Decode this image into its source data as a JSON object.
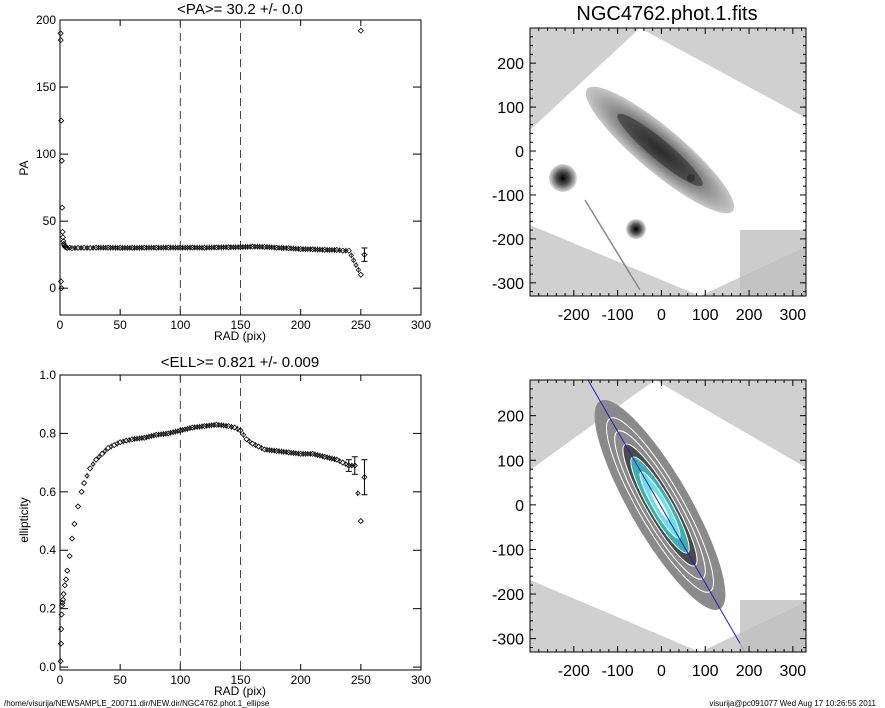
{
  "footer": {
    "path": "/home/visurija/NEWSAMPLE_200711.dir/NEW.dir/NGC4762.phot.1_ellipse",
    "stamp": "visurija@pc091077  Wed Aug 17 10:26:55 2011"
  },
  "chart_data": [
    {
      "type": "scatter",
      "title": "<PA>=  30.2 +/-   0.0",
      "xlabel": "RAD (pix)",
      "ylabel": "PA",
      "xlim": [
        0,
        300
      ],
      "ylim": [
        -20,
        200
      ],
      "xticks": [
        "0",
        "50",
        "100",
        "150",
        "200",
        "250",
        "300"
      ],
      "yticks": [
        "0",
        "50",
        "100",
        "150",
        "200"
      ],
      "vlines": [
        100,
        150
      ],
      "x": [
        0.5,
        0.8,
        1.0,
        1.2,
        1.5,
        1.8,
        2.1,
        2.4,
        2.8,
        3.2,
        3.6,
        4.0,
        5.0,
        6.0,
        8.0,
        10,
        15,
        20,
        25,
        30,
        40,
        50,
        60,
        70,
        80,
        90,
        100,
        110,
        120,
        130,
        140,
        150,
        160,
        170,
        180,
        190,
        200,
        210,
        220,
        230,
        235,
        240,
        250,
        253
      ],
      "y": [
        190,
        5,
        125,
        0,
        95,
        60,
        42,
        38,
        35,
        33,
        32,
        31,
        30.5,
        30,
        30.2,
        29.8,
        30.0,
        30.1,
        30.0,
        30.2,
        30.2,
        30.1,
        30.1,
        30.2,
        30.2,
        30.3,
        30.2,
        30.3,
        30.2,
        30.4,
        30.5,
        30.6,
        31,
        30.8,
        30.2,
        29.8,
        29.2,
        29,
        28.6,
        28.5,
        28,
        28,
        10,
        25
      ],
      "yerr": [
        0,
        0,
        0,
        0,
        0,
        0,
        0,
        0,
        0,
        0,
        0,
        0,
        0,
        0,
        0,
        0,
        0,
        0,
        0,
        0,
        0,
        0,
        0,
        0,
        0,
        0,
        0,
        0,
        0,
        0,
        0,
        0,
        0,
        0,
        0,
        0,
        0,
        0,
        0,
        0,
        0,
        0,
        0,
        5
      ],
      "outliers": [
        {
          "x": 250,
          "y": 192
        },
        {
          "x": 0.6,
          "y": 185
        }
      ]
    },
    {
      "type": "scatter",
      "title": "<ELL>= 0.821 +/-  0.009",
      "xlabel": "RAD (pix)",
      "ylabel": "ellipticity",
      "xlim": [
        0,
        300
      ],
      "ylim": [
        -0.01,
        1.0
      ],
      "xticks": [
        "0",
        "50",
        "100",
        "150",
        "200",
        "250",
        "300"
      ],
      "yticks": [
        "0.0",
        "0.2",
        "0.4",
        "0.6",
        "0.8",
        "1.0"
      ],
      "vlines": [
        100,
        150
      ],
      "x": [
        0.5,
        0.8,
        1.0,
        1.3,
        1.6,
        2.0,
        2.5,
        3.0,
        4.0,
        5.0,
        6.0,
        8.0,
        10,
        12,
        15,
        18,
        20,
        25,
        30,
        35,
        40,
        45,
        50,
        55,
        60,
        70,
        80,
        90,
        100,
        110,
        120,
        130,
        140,
        145,
        150,
        155,
        160,
        165,
        170,
        180,
        190,
        200,
        210,
        220,
        230,
        235,
        240,
        245,
        250,
        253
      ],
      "y": [
        0.02,
        0.08,
        0.13,
        0.18,
        0.21,
        0.22,
        0.23,
        0.25,
        0.28,
        0.3,
        0.33,
        0.38,
        0.44,
        0.49,
        0.55,
        0.6,
        0.63,
        0.68,
        0.71,
        0.73,
        0.75,
        0.76,
        0.77,
        0.775,
        0.78,
        0.785,
        0.795,
        0.8,
        0.81,
        0.82,
        0.825,
        0.83,
        0.825,
        0.82,
        0.81,
        0.78,
        0.765,
        0.755,
        0.745,
        0.74,
        0.735,
        0.73,
        0.73,
        0.72,
        0.71,
        0.7,
        0.69,
        0.69,
        0.5,
        0.65
      ],
      "yerr": [
        0,
        0,
        0,
        0,
        0,
        0,
        0,
        0,
        0,
        0,
        0,
        0,
        0,
        0,
        0,
        0,
        0,
        0,
        0,
        0,
        0,
        0,
        0,
        0,
        0,
        0,
        0,
        0,
        0,
        0,
        0,
        0,
        0,
        0,
        0,
        0,
        0,
        0,
        0,
        0,
        0,
        0,
        0,
        0,
        0,
        0,
        0.02,
        0.03,
        0,
        0.06
      ]
    }
  ],
  "images": [
    {
      "title": "NGC4762.phot.1.fits",
      "xticks": [
        "-200",
        "-100",
        "0",
        "100",
        "200",
        "300"
      ],
      "yticks": [
        "200",
        "100",
        "0",
        "-100",
        "-200",
        "-300"
      ]
    },
    {
      "title": "",
      "xticks": [
        "-200",
        "-100",
        "0",
        "100",
        "200",
        "300"
      ],
      "yticks": [
        "200",
        "100",
        "0",
        "-100",
        "-200",
        "-300"
      ]
    }
  ],
  "colors": {
    "axis": "#000000",
    "marker": "#000000",
    "errorbar": "#000000",
    "dashed": "#444444",
    "image_background": "#d0d0d0",
    "fit_line": "#1f1fd0",
    "isophote": "#ffffff",
    "core": "#4fd4d4"
  }
}
